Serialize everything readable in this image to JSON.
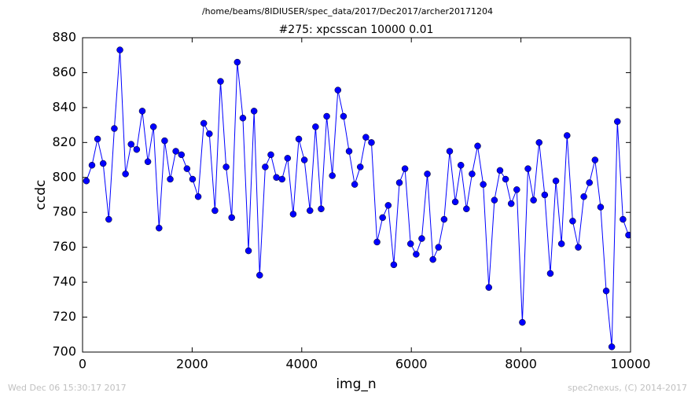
{
  "chart_data": {
    "type": "line",
    "suptitle": "/home/beams/8IDIUSER/spec_data/2017/Dec2017/archer20171204",
    "title": "#275: xpcsscan 10000 0.01",
    "x_label": "img_n",
    "y_label": "ccdc",
    "footer_left": "Wed Dec 06 15:30:17 2017",
    "footer_right": "spec2nexus, (C) 2014-2017",
    "x": [
      70,
      172,
      274,
      376,
      478,
      580,
      682,
      784,
      886,
      988,
      1090,
      1192,
      1294,
      1396,
      1498,
      1600,
      1702,
      1804,
      1906,
      2008,
      2110,
      2212,
      2314,
      2416,
      2518,
      2620,
      2722,
      2824,
      2926,
      3028,
      3130,
      3232,
      3334,
      3436,
      3538,
      3640,
      3742,
      3844,
      3946,
      4048,
      4150,
      4252,
      4354,
      4456,
      4558,
      4660,
      4762,
      4864,
      4966,
      5068,
      5170,
      5272,
      5374,
      5476,
      5578,
      5680,
      5782,
      5884,
      5986,
      6088,
      6190,
      6292,
      6394,
      6496,
      6598,
      6700,
      6802,
      6904,
      7006,
      7108,
      7210,
      7312,
      7414,
      7516,
      7618,
      7720,
      7822,
      7924,
      8026,
      8128,
      8230,
      8332,
      8434,
      8536,
      8638,
      8740,
      8842,
      8944,
      9046,
      9148,
      9250,
      9352,
      9454,
      9556,
      9658,
      9760,
      9862,
      9964
    ],
    "series": [
      {
        "name": "ccdc",
        "color": "#0000ff",
        "values": [
          798,
          807,
          822,
          808,
          776,
          828,
          873,
          802,
          819,
          816,
          838,
          809,
          829,
          771,
          821,
          799,
          815,
          813,
          805,
          799,
          789,
          831,
          825,
          781,
          855,
          806,
          777,
          866,
          834,
          758,
          838,
          744,
          806,
          813,
          800,
          799,
          811,
          779,
          822,
          810,
          781,
          829,
          782,
          835,
          801,
          850,
          835,
          815,
          796,
          806,
          823,
          820,
          763,
          777,
          784,
          750,
          797,
          805,
          762,
          756,
          765,
          802,
          753,
          760,
          776,
          815,
          786,
          807,
          782,
          802,
          818,
          796,
          737,
          787,
          804,
          799,
          785,
          793,
          717,
          805,
          787,
          820,
          790,
          745,
          798,
          762,
          824,
          775,
          760,
          789,
          797,
          810,
          783,
          735,
          703,
          832,
          776,
          767
        ]
      }
    ],
    "xlim": [
      0,
      10000
    ],
    "xticks": [
      0,
      2000,
      4000,
      6000,
      8000,
      10000
    ],
    "ylim": [
      700,
      880
    ],
    "yticks": [
      700,
      720,
      740,
      760,
      780,
      800,
      820,
      840,
      860,
      880
    ]
  }
}
